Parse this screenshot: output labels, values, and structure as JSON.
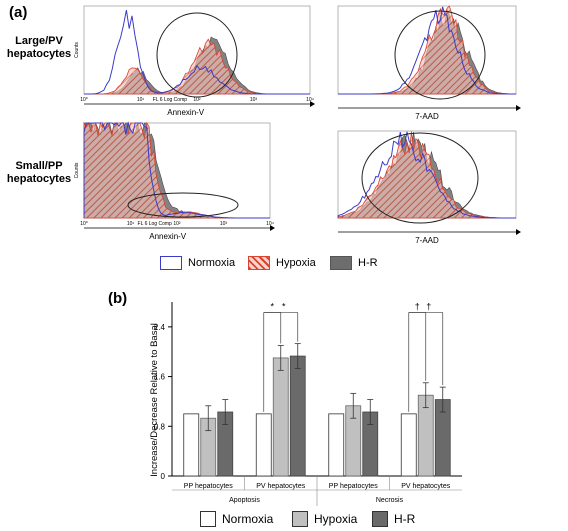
{
  "panel_a": {
    "tag": "(a)",
    "rows": [
      {
        "label_line1": "Large/PV",
        "label_line2": "hepatocytes"
      },
      {
        "label_line1": "Small/PP",
        "label_line2": "hepatocytes"
      }
    ],
    "ylabel": "Counts",
    "fl_label": "FL 6 Log Comp",
    "annexin_label": "Annexin-V",
    "aad_label": "7-AAD",
    "log_ticks": [
      "10⁰",
      "10¹",
      "10²",
      "10³",
      "10⁴"
    ],
    "legend": [
      {
        "name": "Normoxia",
        "color": "#3b3bc8"
      },
      {
        "name": "Hypoxia",
        "color": "#d9432f"
      },
      {
        "name": "H-R",
        "color": "#6d6d6d"
      }
    ]
  },
  "panel_b": {
    "tag": "(b)",
    "legend": [
      {
        "name": "Normoxia",
        "color": "#ffffff"
      },
      {
        "name": "Hypoxia",
        "color": "#c0c0c0"
      },
      {
        "name": "H-R",
        "color": "#6a6a6a"
      }
    ]
  },
  "chart_data": {
    "type": "bar",
    "ylabel": "Increase/Decrease Relative to Basal",
    "ylim": [
      0,
      2.8
    ],
    "yticks": [
      "0",
      "0.8",
      "1.6",
      "2.4"
    ],
    "categories": [
      "PP hepatocytes",
      "PV hepatocytes",
      "PP hepatocytes",
      "PV hepatocytes"
    ],
    "groups": [
      "Apoptosis",
      "Necrosis"
    ],
    "series": [
      {
        "name": "Normoxia",
        "values": [
          1.0,
          1.0,
          1.0,
          1.0
        ],
        "errors": [
          0,
          0,
          0,
          0
        ]
      },
      {
        "name": "Hypoxia",
        "values": [
          0.93,
          1.9,
          1.13,
          1.3
        ],
        "errors": [
          0.2,
          0.2,
          0.2,
          0.2
        ]
      },
      {
        "name": "H-R",
        "values": [
          1.03,
          1.93,
          1.03,
          1.23
        ],
        "errors": [
          0.2,
          0.2,
          0.2,
          0.2
        ]
      }
    ],
    "annotations": [
      {
        "text": "*",
        "category": 1,
        "series": 1
      },
      {
        "text": "*",
        "category": 1,
        "series": 2
      },
      {
        "text": "†",
        "category": 3,
        "series": 1
      },
      {
        "text": "†",
        "category": 3,
        "series": 2
      }
    ]
  }
}
